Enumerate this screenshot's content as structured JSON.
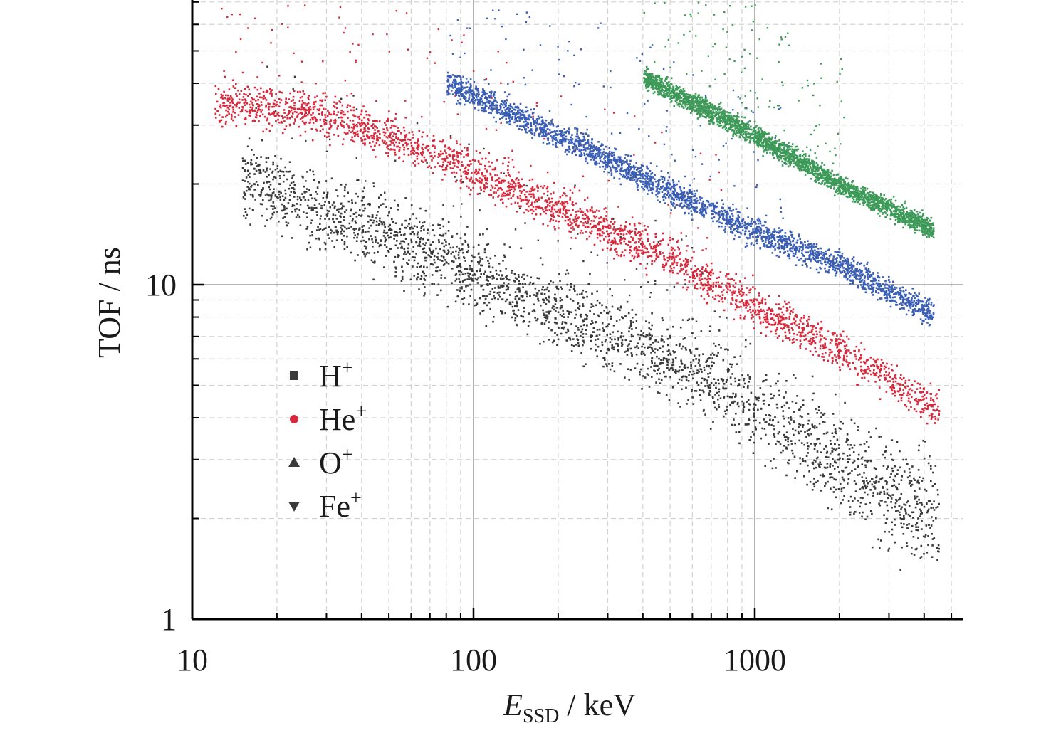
{
  "chart_data": {
    "type": "scatter",
    "xscale": "log",
    "yscale": "log",
    "xlim": [
      10,
      5000
    ],
    "ylim": [
      1,
      100
    ],
    "grid": "major and minor",
    "legend_position": "bottom-left",
    "xlabel": {
      "var": "E",
      "sub": "SSD",
      "unit": " / keV"
    },
    "ylabel": "TOF / ns",
    "x_ticks": [
      {
        "v": 10,
        "label": "10"
      },
      {
        "v": 100,
        "label": "100"
      },
      {
        "v": 1000,
        "label": "1000"
      }
    ],
    "y_ticks": [
      {
        "v": 1,
        "label": "1"
      },
      {
        "v": 10,
        "label": "10"
      }
    ],
    "series": [
      {
        "name": "H",
        "charge": "+",
        "marker": "square",
        "color": "#3a3a3a",
        "x": [
          15,
          20,
          30,
          50,
          100,
          200,
          500,
          1000,
          2000,
          4500
        ],
        "y": [
          21,
          19,
          16,
          14,
          11,
          8.3,
          6.0,
          4.4,
          3.0,
          2.0
        ],
        "spread": 0.055
      },
      {
        "name": "He",
        "charge": "+",
        "marker": "circle",
        "color": "#d62a3c",
        "x": [
          12,
          20,
          30,
          50,
          70,
          100,
          200,
          500,
          1000,
          2000,
          4500
        ],
        "y": [
          35,
          34,
          32,
          28,
          25,
          22,
          17,
          12,
          8.6,
          6.4,
          4.2
        ],
        "spread": 0.03
      },
      {
        "name": "O",
        "charge": "+",
        "marker": "triangle-up",
        "color": "#3b5eb5",
        "x": [
          80,
          100,
          200,
          300,
          500,
          1000,
          2000,
          4300
        ],
        "y": [
          40,
          37,
          28,
          24,
          19,
          14.5,
          11.5,
          8.2
        ],
        "spread": 0.02
      },
      {
        "name": "Fe",
        "charge": "+",
        "marker": "triangle-down",
        "color": "#3e9a58",
        "x": [
          400,
          500,
          700,
          1000,
          1500,
          2000,
          3000,
          4300
        ],
        "y": [
          42,
          38,
          33,
          28,
          23,
          20,
          17,
          14.6
        ],
        "spread": 0.015
      }
    ]
  }
}
